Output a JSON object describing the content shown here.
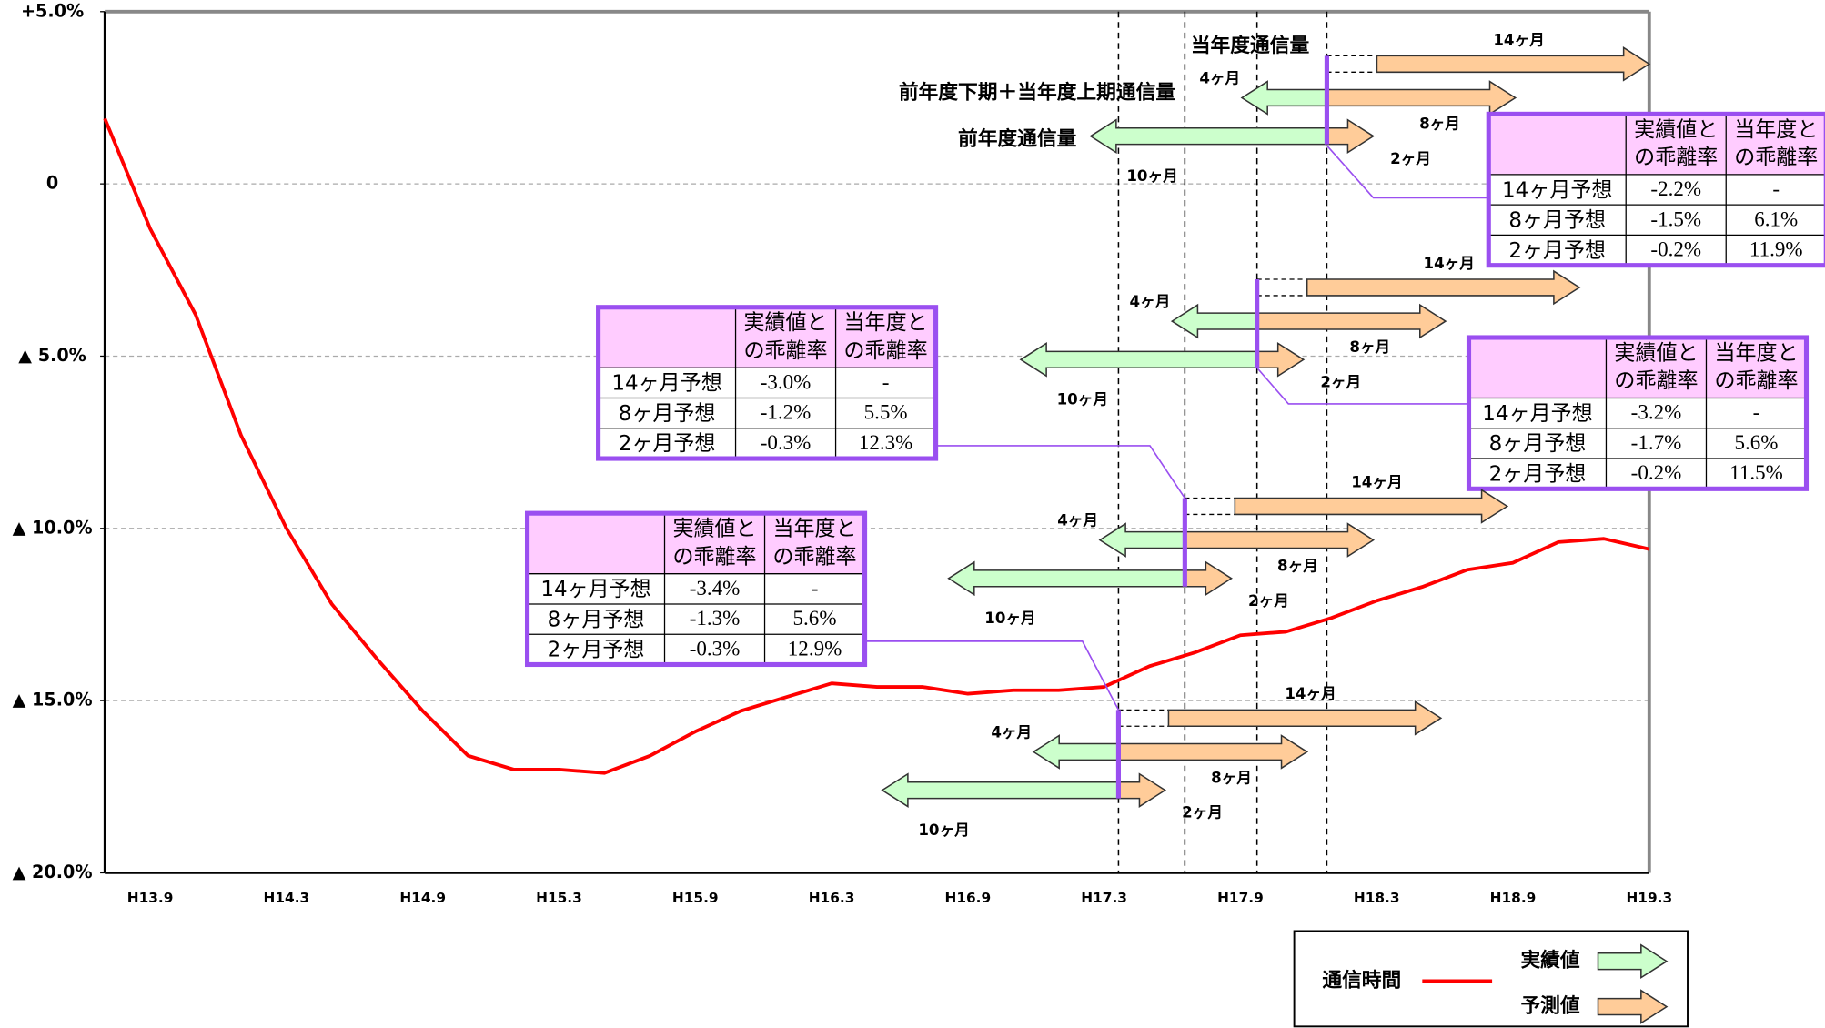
{
  "chart_data": {
    "type": "line",
    "categories": [
      null,
      "H13.9",
      null,
      null,
      "H14.3",
      null,
      null,
      "H14.9",
      null,
      null,
      "H15.3",
      null,
      null,
      "H15.9",
      null,
      null,
      "H16.3",
      null,
      null,
      "H16.9",
      null,
      null,
      "H17.3",
      null,
      null,
      "H17.9",
      null,
      null,
      "H18.3",
      null,
      null,
      "H18.9",
      null,
      null,
      "H19.3"
    ],
    "series": [
      {
        "name": "通信時間",
        "color": "#ff0000",
        "values": [
          1.9,
          -1.3,
          -3.8,
          -7.3,
          -10.0,
          -12.2,
          -13.8,
          -15.3,
          -16.6,
          -17.0,
          -17.0,
          -17.1,
          -16.6,
          -15.9,
          -15.3,
          -14.9,
          -14.5,
          -14.6,
          -14.6,
          -14.8,
          -14.7,
          -14.7,
          -14.6,
          -14.0,
          -13.6,
          -13.1,
          -13.0,
          -12.6,
          -12.1,
          -11.7,
          -11.2,
          -11.0,
          -10.4,
          -10.3,
          -10.6
        ]
      }
    ],
    "ylim": [
      -20,
      5
    ],
    "yticks": [
      {
        "value": 5,
        "label": "+5.0%"
      },
      0,
      {
        "value": -5,
        "label": "▲ 5.0%"
      },
      {
        "value": -10,
        "label": "▲ 10.0%"
      },
      {
        "value": -15,
        "label": "▲ 15.0%"
      },
      {
        "value": -20,
        "label": "▲ 20.0%"
      }
    ],
    "grid": true,
    "arrow_legend": [
      "実績値",
      "予測値"
    ],
    "annotations": {
      "series_labels": [
        "当年度通信量",
        "前年度下期＋当年度上期通信量",
        "前年度通信量"
      ],
      "groups": [
        {
          "arrow_labels": [
            "14ヶ月",
            "4ヶ月",
            "8ヶ月",
            "2ヶ月",
            "10ヶ月"
          ],
          "table": {
            "header": [
              [
                "実績値と",
                "の乖離率"
              ],
              [
                "当年度と",
                "の乖離率"
              ]
            ],
            "rows": [
              [
                "14ヶ月予想",
                "-2.2%",
                "-"
              ],
              [
                "8ヶ月予想",
                "-1.5%",
                "6.1%"
              ],
              [
                "2ヶ月予想",
                "-0.2%",
                "11.9%"
              ]
            ]
          }
        },
        {
          "arrow_labels": [
            "14ヶ月",
            "4ヶ月",
            "8ヶ月",
            "2ヶ月",
            "10ヶ月"
          ],
          "table": {
            "header": [
              [
                "実績値と",
                "の乖離率"
              ],
              [
                "当年度と",
                "の乖離率"
              ]
            ],
            "rows": [
              [
                "14ヶ月予想",
                "-3.2%",
                "-"
              ],
              [
                "8ヶ月予想",
                "-1.7%",
                "5.6%"
              ],
              [
                "2ヶ月予想",
                "-0.2%",
                "11.5%"
              ]
            ]
          }
        },
        {
          "arrow_labels": [
            "14ヶ月",
            "4ヶ月",
            "8ヶ月",
            "2ヶ月",
            "10ヶ月"
          ],
          "table": {
            "header": [
              [
                "実績値と",
                "の乖離率"
              ],
              [
                "当年度と",
                "の乖離率"
              ]
            ],
            "rows": [
              [
                "14ヶ月予想",
                "-3.0%",
                "-"
              ],
              [
                "8ヶ月予想",
                "-1.2%",
                "5.5%"
              ],
              [
                "2ヶ月予想",
                "-0.3%",
                "12.3%"
              ]
            ]
          }
        },
        {
          "arrow_labels": [
            "14ヶ月",
            "4ヶ月",
            "8ヶ月",
            "2ヶ月",
            "10ヶ月"
          ],
          "table": {
            "header": [
              [
                "実績値と",
                "の乖離率"
              ],
              [
                "当年度と",
                "の乖離率"
              ]
            ],
            "rows": [
              [
                "14ヶ月予想",
                "-3.4%",
                "-"
              ],
              [
                "8ヶ月予想",
                "-1.3%",
                "5.6%"
              ],
              [
                "2ヶ月予想",
                "-0.3%",
                "12.9%"
              ]
            ]
          }
        }
      ]
    }
  }
}
